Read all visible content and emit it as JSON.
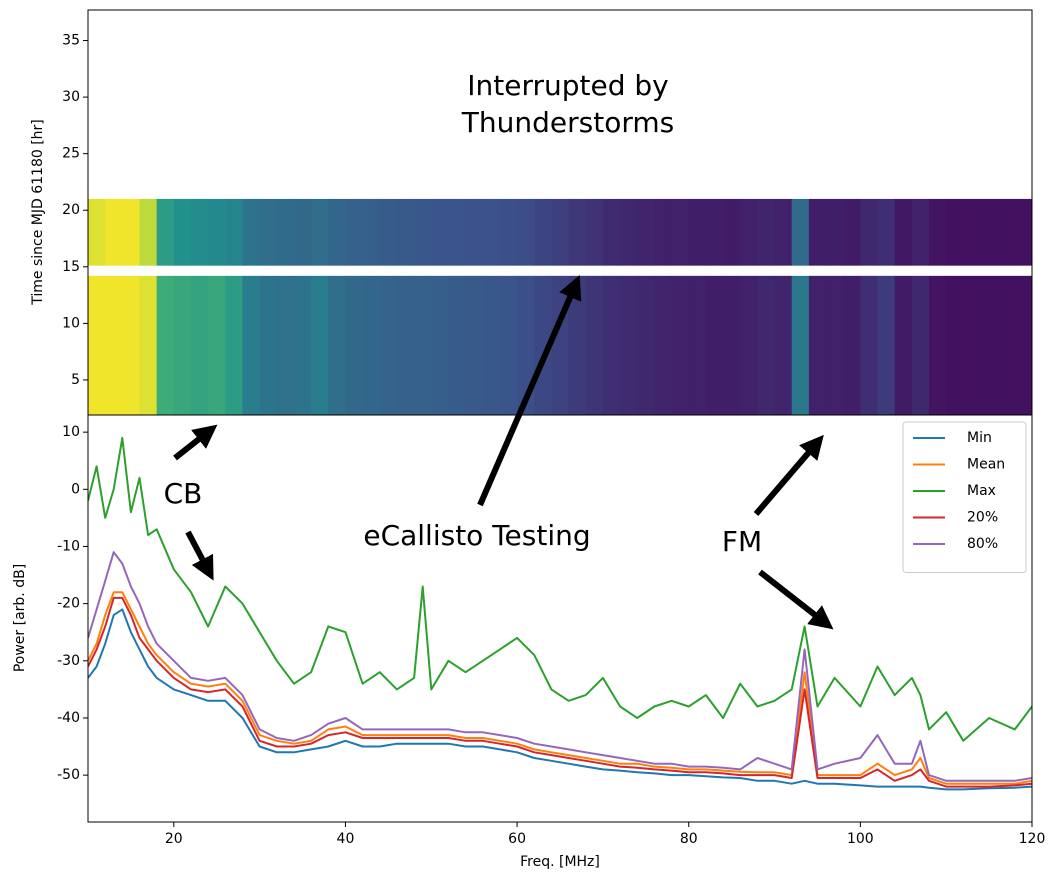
{
  "chart_data": [
    {
      "type": "heatmap",
      "ylabel": "Time since MJD 61180 [hr]",
      "annotations": [
        "Interrupted by",
        "Thunderstorms"
      ],
      "colormap": "viridis",
      "zlim": [
        0,
        1
      ],
      "xlim": [
        10,
        120
      ],
      "ylim": [
        1.9,
        37.7
      ],
      "yticks": [
        5,
        10,
        15,
        20,
        25,
        30,
        35
      ],
      "x": [
        10,
        12,
        14,
        16,
        18,
        20,
        22,
        24,
        26,
        28,
        30,
        32,
        34,
        36,
        38,
        40,
        42,
        44,
        46,
        48,
        50,
        52,
        54,
        56,
        58,
        60,
        62,
        64,
        66,
        68,
        70,
        72,
        74,
        76,
        78,
        80,
        82,
        84,
        86,
        88,
        90,
        92,
        94,
        96,
        98,
        100,
        102,
        104,
        106,
        108,
        110,
        112,
        114,
        116,
        118,
        120
      ],
      "y_bins": [
        [
          1.9,
          14.2
        ],
        [
          15.1,
          21
        ]
      ],
      "z": [
        [
          0.98,
          0.98,
          0.98,
          0.95,
          0.62,
          0.6,
          0.58,
          0.6,
          0.55,
          0.42,
          0.38,
          0.37,
          0.38,
          0.42,
          0.36,
          0.34,
          0.33,
          0.32,
          0.31,
          0.31,
          0.3,
          0.29,
          0.28,
          0.27,
          0.26,
          0.24,
          0.22,
          0.2,
          0.18,
          0.16,
          0.14,
          0.13,
          0.12,
          0.11,
          0.1,
          0.1,
          0.09,
          0.09,
          0.1,
          0.12,
          0.11,
          0.4,
          0.1,
          0.1,
          0.09,
          0.14,
          0.18,
          0.08,
          0.12,
          0.06,
          0.05,
          0.05,
          0.05,
          0.05,
          0.05
        ],
        [
          0.95,
          0.98,
          0.98,
          0.9,
          0.55,
          0.5,
          0.48,
          0.47,
          0.45,
          0.38,
          0.36,
          0.35,
          0.34,
          0.36,
          0.33,
          0.31,
          0.3,
          0.29,
          0.28,
          0.27,
          0.26,
          0.26,
          0.25,
          0.25,
          0.24,
          0.23,
          0.21,
          0.19,
          0.17,
          0.15,
          0.13,
          0.12,
          0.11,
          0.1,
          0.1,
          0.09,
          0.09,
          0.08,
          0.1,
          0.11,
          0.1,
          0.35,
          0.09,
          0.09,
          0.08,
          0.12,
          0.14,
          0.07,
          0.1,
          0.06,
          0.05,
          0.05,
          0.05,
          0.05,
          0.05
        ]
      ]
    },
    {
      "type": "line",
      "xlabel": "Freq. [MHz]",
      "ylabel": "Power [arb. dB]",
      "annotations": [
        "CB",
        "eCallisto Testing",
        "FM"
      ],
      "legend": "upper right",
      "xlim": [
        10,
        120
      ],
      "xticks": [
        20,
        40,
        60,
        80,
        100,
        120
      ],
      "ylim": [
        -58.2,
        13
      ],
      "yticks": [
        -50,
        -40,
        -30,
        -20,
        -10,
        0,
        10
      ],
      "x": [
        10,
        11,
        12,
        13,
        14,
        15,
        16,
        17,
        18,
        20,
        22,
        24,
        26,
        28,
        30,
        32,
        34,
        36,
        38,
        40,
        42,
        44,
        46,
        48,
        49,
        50,
        52,
        54,
        56,
        58,
        60,
        62,
        64,
        66,
        68,
        70,
        72,
        74,
        76,
        78,
        80,
        82,
        84,
        86,
        88,
        90,
        92,
        93.5,
        95,
        97,
        100,
        102,
        104,
        106,
        107,
        108,
        110,
        112,
        115,
        118,
        120
      ],
      "series": [
        {
          "name": "Min",
          "color": "#1f77b4",
          "values": [
            -33,
            -31,
            -27,
            -22,
            -21,
            -25,
            -28,
            -31,
            -33,
            -35,
            -36,
            -37,
            -37,
            -40,
            -45,
            -46,
            -46,
            -45.5,
            -45,
            -44,
            -45,
            -45,
            -44.5,
            -44.5,
            -44.5,
            -44.5,
            -44.5,
            -45,
            -45,
            -45.5,
            -46,
            -47,
            -47.5,
            -48,
            -48.5,
            -49,
            -49.2,
            -49.5,
            -49.7,
            -50,
            -50,
            -50.2,
            -50.4,
            -50.5,
            -51,
            -51,
            -51.5,
            -51,
            -51.5,
            -51.5,
            -51.8,
            -52,
            -52,
            -52,
            -52,
            -52.2,
            -52.5,
            -52.5,
            -52.3,
            -52.2,
            -52
          ]
        },
        {
          "name": "Mean",
          "color": "#ff7f0e",
          "values": [
            -30,
            -27,
            -22,
            -18,
            -18,
            -21,
            -24,
            -27,
            -29,
            -32,
            -34,
            -34.5,
            -34,
            -37,
            -43,
            -44,
            -44.5,
            -44,
            -42,
            -41.5,
            -43,
            -43,
            -43,
            -43,
            -43,
            -43,
            -43,
            -43.5,
            -43.5,
            -44,
            -44.5,
            -45.5,
            -46,
            -46.5,
            -47,
            -47.5,
            -48,
            -48,
            -48.5,
            -48.7,
            -49,
            -49,
            -49.2,
            -49.4,
            -49.5,
            -49.5,
            -50,
            -32,
            -50,
            -50,
            -50,
            -48,
            -50,
            -49,
            -47,
            -50.5,
            -51.5,
            -51.5,
            -51.5,
            -51.5,
            -51
          ]
        },
        {
          "name": "Max",
          "color": "#2ca02c",
          "values": [
            -2,
            4,
            -5,
            0,
            9,
            -4,
            2,
            -8,
            -7,
            -14,
            -18,
            -24,
            -17,
            -20,
            -25,
            -30,
            -34,
            -32,
            -24,
            -25,
            -34,
            -32,
            -35,
            -33,
            -17,
            -35,
            -30,
            -32,
            -30,
            -28,
            -26,
            -29,
            -35,
            -37,
            -36,
            -33,
            -38,
            -40,
            -38,
            -37,
            -38,
            -36,
            -40,
            -34,
            -38,
            -37,
            -35,
            -24,
            -38,
            -33,
            -38,
            -31,
            -36,
            -33,
            -36,
            -42,
            -39,
            -44,
            -40,
            -42,
            -38
          ]
        },
        {
          "name": "20%",
          "color": "#d62728",
          "values": [
            -31,
            -28,
            -24,
            -19,
            -19,
            -22,
            -26,
            -28,
            -30,
            -33,
            -35,
            -35.5,
            -35,
            -38,
            -44,
            -45,
            -45,
            -44.5,
            -43,
            -42.5,
            -43.5,
            -43.5,
            -43.5,
            -43.5,
            -43.5,
            -43.5,
            -43.5,
            -44,
            -44,
            -44.5,
            -45,
            -46,
            -46.5,
            -47,
            -47.5,
            -48,
            -48.5,
            -48.7,
            -49,
            -49.2,
            -49.5,
            -49.5,
            -49.7,
            -50,
            -50,
            -50,
            -50.5,
            -35,
            -50.5,
            -50.5,
            -50.5,
            -49,
            -51,
            -50,
            -49,
            -51,
            -52,
            -52,
            -52,
            -51.8,
            -51.5
          ]
        },
        {
          "name": "80%",
          "color": "#9467bd",
          "values": [
            -26,
            -21,
            -16,
            -11,
            -13,
            -17,
            -20,
            -24,
            -27,
            -30,
            -33,
            -33.5,
            -33,
            -36,
            -42,
            -43.5,
            -44,
            -43,
            -41,
            -40,
            -42,
            -42,
            -42,
            -42,
            -42,
            -42,
            -42,
            -42.5,
            -42.5,
            -43,
            -43.5,
            -44.5,
            -45,
            -45.5,
            -46,
            -46.5,
            -47,
            -47.5,
            -48,
            -48,
            -48.5,
            -48.5,
            -48.7,
            -49,
            -47,
            -48,
            -49,
            -28,
            -49,
            -48,
            -47,
            -43,
            -48,
            -48,
            -44,
            -50,
            -51,
            -51,
            -51,
            -51,
            -50.5
          ]
        }
      ]
    }
  ]
}
